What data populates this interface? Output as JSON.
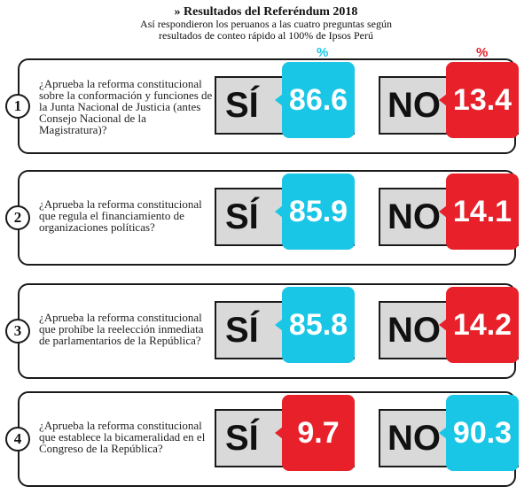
{
  "header": {
    "title": "» Resultados del Referéndum 2018",
    "subtitle_line1": "Así respondieron los peruanos a las cuatro preguntas según",
    "subtitle_line2": "resultados de conteo rápido al 100% de Ipsos Perú"
  },
  "percent_symbol": "%",
  "colors": {
    "cyan": "#19c6e6",
    "red": "#e8202a",
    "box_gray": "#d9d9d9"
  },
  "chart_data": {
    "type": "table",
    "title": "» Resultados del Referéndum 2018",
    "subtitle": "Así respondieron los peruanos a las cuatro preguntas según resultados de conteo rápido al 100% de Ipsos Perú",
    "unit": "%",
    "columns": [
      "SÍ",
      "NO"
    ],
    "rows": [
      {
        "number": "1",
        "question": "¿Aprueba la reforma constitucional sobre la conformación y funciones de la Junta Nacional de Justicia (antes Consejo Nacional de la Magistratura)?",
        "si": 86.6,
        "no": 13.4,
        "si_label": "86.6",
        "no_label": "13.4",
        "si_color": "#19c6e6",
        "no_color": "#e8202a"
      },
      {
        "number": "2",
        "question": "¿Aprueba la reforma constitucional que regula el financiamiento de organizaciones políticas?",
        "si": 85.9,
        "no": 14.1,
        "si_label": "85.9",
        "no_label": "14.1",
        "si_color": "#19c6e6",
        "no_color": "#e8202a"
      },
      {
        "number": "3",
        "question": "¿Aprueba la reforma constitucional que prohíbe la reelección inmediata de parlamentarios de la República?",
        "si": 85.8,
        "no": 14.2,
        "si_label": "85.8",
        "no_label": "14.2",
        "si_color": "#19c6e6",
        "no_color": "#e8202a"
      },
      {
        "number": "4",
        "question": "¿Aprueba la reforma constitucional que establece la bicameralidad en el Congreso de la República?",
        "si": 9.7,
        "no": 90.3,
        "si_label": "9.7",
        "no_label": "90.3",
        "si_color": "#e8202a",
        "no_color": "#19c6e6"
      }
    ]
  }
}
